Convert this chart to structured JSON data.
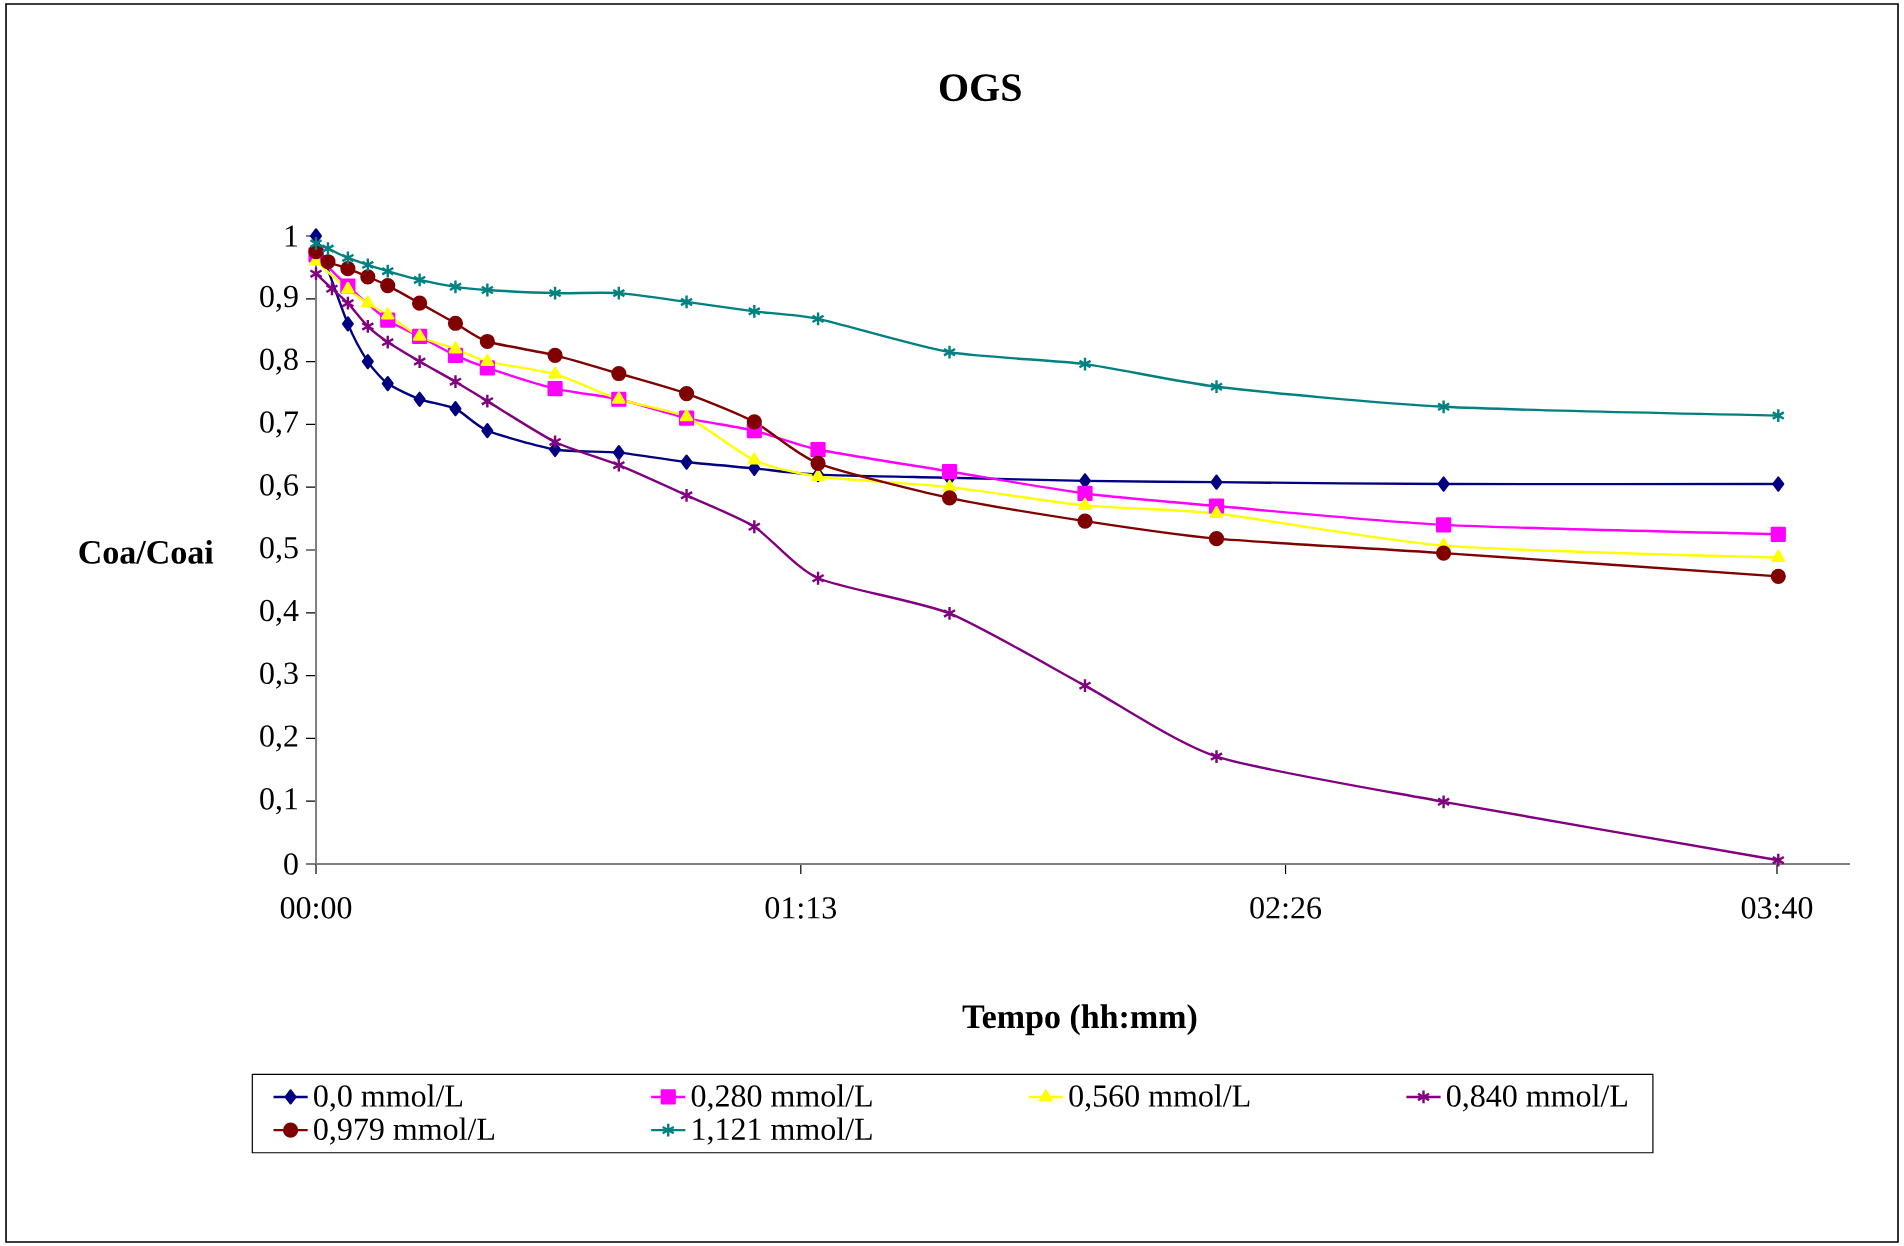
{
  "chart_data": {
    "type": "line",
    "title": "OGS",
    "xlabel": "Tempo (hh:mm)",
    "ylabel": "Coa/Coai",
    "xlim": [
      0,
      3.85
    ],
    "ylim": [
      0,
      1
    ],
    "xticks": [
      {
        "value": 0,
        "label": "00:00"
      },
      {
        "value": 1.2167,
        "label": "01:13"
      },
      {
        "value": 2.4333,
        "label": "02:26"
      },
      {
        "value": 3.6667,
        "label": "03:40"
      }
    ],
    "yticks": [
      0,
      {
        "value": 0.1,
        "label": "0,1"
      },
      {
        "value": 0.2,
        "label": "0,2"
      },
      {
        "value": 0.3,
        "label": "0,3"
      },
      {
        "value": 0.4,
        "label": "0,4"
      },
      {
        "value": 0.5,
        "label": "0,5"
      },
      {
        "value": 0.6,
        "label": "0,6"
      },
      {
        "value": 0.7,
        "label": "0,7"
      },
      {
        "value": 0.8,
        "label": "0,8"
      },
      {
        "value": 0.9,
        "label": "0,9"
      },
      1
    ],
    "grid": false,
    "legend": "bottom",
    "line_style": "solid",
    "series": [
      {
        "name": "0,0 mmol/L",
        "color": "#000080",
        "marker": "diamond",
        "x": [
          0,
          0.08,
          0.13,
          0.18,
          0.26,
          0.35,
          0.43,
          0.6,
          0.76,
          0.93,
          1.1,
          1.26,
          1.59,
          1.93,
          2.26,
          2.83,
          3.67
        ],
        "values": [
          1.0,
          0.86,
          0.8,
          0.765,
          0.74,
          0.725,
          0.69,
          0.66,
          0.655,
          0.64,
          0.63,
          0.62,
          0.615,
          0.61,
          0.608,
          0.605,
          0.605
        ]
      },
      {
        "name": "0,280 mmol/L",
        "color": "#ff00ff",
        "marker": "square",
        "x": [
          0,
          0.08,
          0.18,
          0.26,
          0.35,
          0.43,
          0.6,
          0.76,
          0.93,
          1.1,
          1.26,
          1.59,
          1.93,
          2.26,
          2.83,
          3.67
        ],
        "values": [
          0.97,
          0.92,
          0.866,
          0.84,
          0.81,
          0.79,
          0.757,
          0.74,
          0.71,
          0.69,
          0.66,
          0.625,
          0.59,
          0.57,
          0.54,
          0.525
        ]
      },
      {
        "name": "0,560 mmol/L",
        "color": "#ffff00",
        "marker": "triangle",
        "x": [
          0,
          0.08,
          0.13,
          0.18,
          0.26,
          0.35,
          0.43,
          0.6,
          0.76,
          0.93,
          1.1,
          1.26,
          1.59,
          1.93,
          2.26,
          2.83,
          3.67
        ],
        "values": [
          0.96,
          0.915,
          0.893,
          0.874,
          0.84,
          0.82,
          0.8,
          0.78,
          0.74,
          0.712,
          0.643,
          0.617,
          0.6,
          0.571,
          0.558,
          0.507,
          0.488
        ]
      },
      {
        "name": "0,840 mmol/L",
        "color": "#800080",
        "marker": "cross",
        "x": [
          0,
          0.04,
          0.08,
          0.13,
          0.18,
          0.26,
          0.35,
          0.43,
          0.6,
          0.76,
          0.93,
          1.1,
          1.26,
          1.59,
          1.93,
          2.26,
          2.83,
          3.67
        ],
        "values": [
          0.94,
          0.916,
          0.893,
          0.856,
          0.831,
          0.8,
          0.768,
          0.737,
          0.672,
          0.635,
          0.587,
          0.537,
          0.455,
          0.399,
          0.284,
          0.171,
          0.099,
          0.006
        ]
      },
      {
        "name": "0,979 mmol/L",
        "color": "#800000",
        "marker": "circle",
        "x": [
          0,
          0.03,
          0.08,
          0.13,
          0.18,
          0.26,
          0.35,
          0.43,
          0.6,
          0.76,
          0.93,
          1.1,
          1.26,
          1.59,
          1.93,
          2.26,
          2.83,
          3.67
        ],
        "values": [
          0.975,
          0.959,
          0.948,
          0.935,
          0.921,
          0.893,
          0.861,
          0.832,
          0.81,
          0.781,
          0.749,
          0.704,
          0.638,
          0.583,
          0.546,
          0.518,
          0.495,
          0.458
        ]
      },
      {
        "name": "1,121 mmol/L",
        "color": "#008080",
        "marker": "cross",
        "x": [
          0,
          0.03,
          0.08,
          0.13,
          0.18,
          0.26,
          0.35,
          0.43,
          0.6,
          0.76,
          0.93,
          1.1,
          1.26,
          1.59,
          1.93,
          2.26,
          2.83,
          3.67
        ],
        "values": [
          0.988,
          0.98,
          0.965,
          0.954,
          0.944,
          0.93,
          0.919,
          0.914,
          0.909,
          0.909,
          0.895,
          0.88,
          0.868,
          0.815,
          0.796,
          0.76,
          0.728,
          0.714
        ]
      }
    ]
  }
}
